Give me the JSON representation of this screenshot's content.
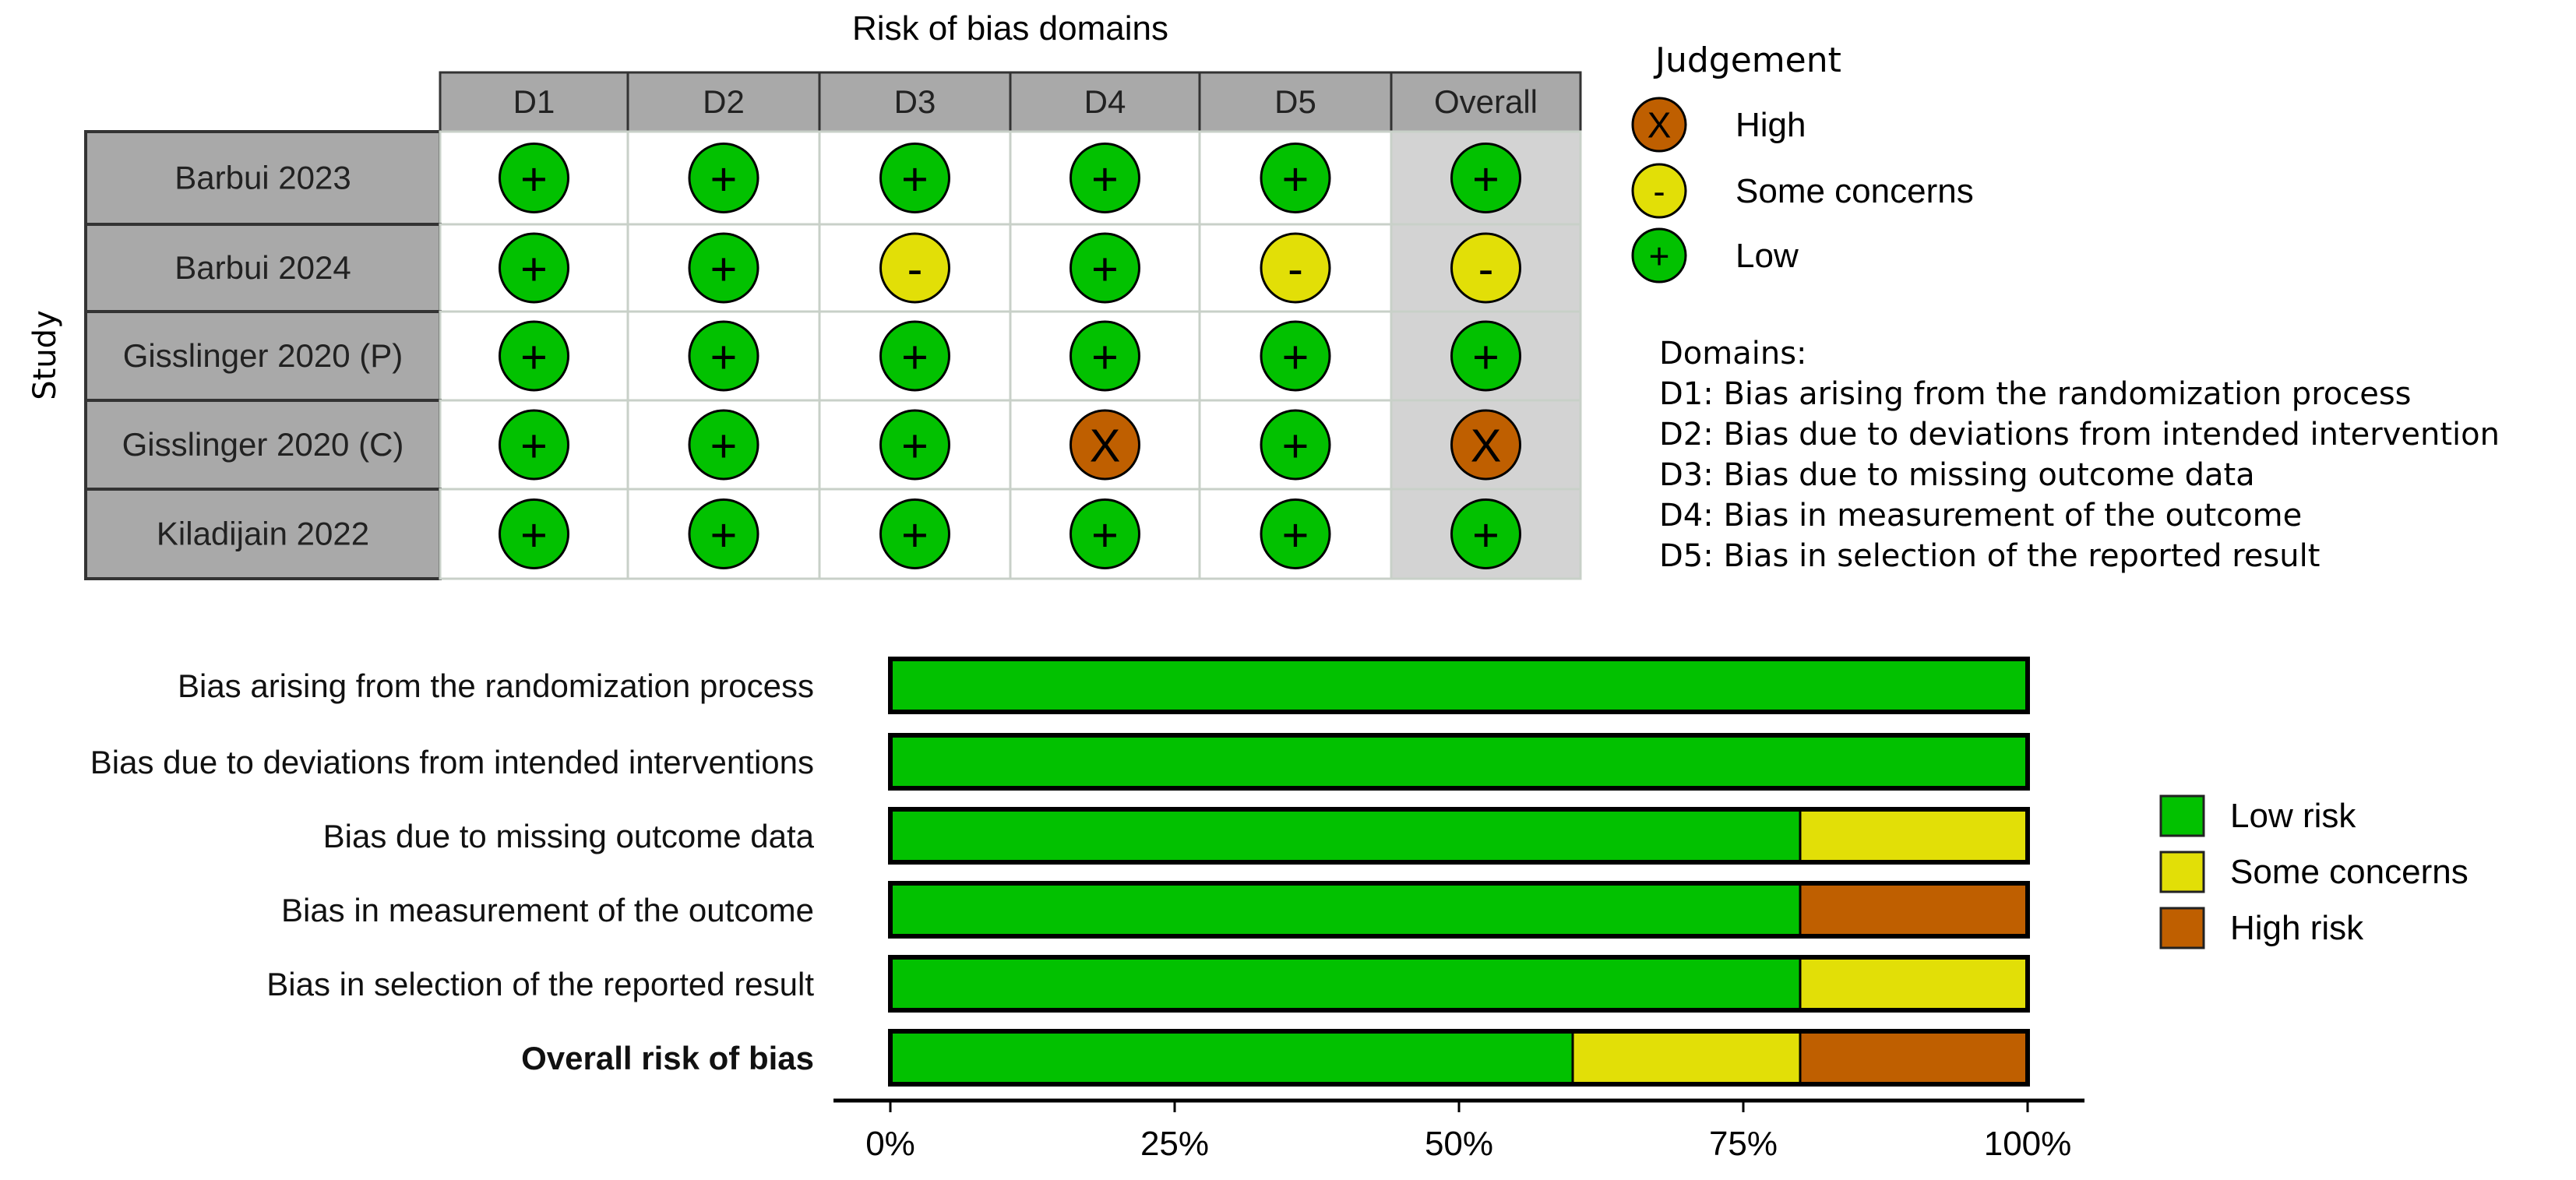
{
  "colors": {
    "low": "#02C100",
    "some": "#E2DF07",
    "high": "#BF5F00",
    "header_bg": "#A9A9A9",
    "overall_bg": "#D3D3D3"
  },
  "traffic_light": {
    "title": "Risk of bias domains",
    "y_label": "Study",
    "columns": [
      "D1",
      "D2",
      "D3",
      "D4",
      "D5",
      "Overall"
    ],
    "studies": [
      {
        "name": "Barbui 2023",
        "judgements": [
          "low",
          "low",
          "low",
          "low",
          "low",
          "low"
        ]
      },
      {
        "name": "Barbui 2024",
        "judgements": [
          "low",
          "low",
          "some",
          "low",
          "some",
          "some"
        ]
      },
      {
        "name": "Gisslinger 2020 (P)",
        "judgements": [
          "low",
          "low",
          "low",
          "low",
          "low",
          "low"
        ]
      },
      {
        "name": "Gisslinger 2020 (C)",
        "judgements": [
          "low",
          "low",
          "low",
          "high",
          "low",
          "high"
        ]
      },
      {
        "name": "Kiladijain 2022",
        "judgements": [
          "low",
          "low",
          "low",
          "low",
          "low",
          "low"
        ]
      }
    ],
    "symbols": {
      "low": "+",
      "some": "-",
      "high": "X"
    },
    "legend": {
      "title": "Judgement",
      "items": [
        {
          "key": "high",
          "symbol": "X",
          "label": "High"
        },
        {
          "key": "some",
          "symbol": "-",
          "label": "Some concerns"
        },
        {
          "key": "low",
          "symbol": "+",
          "label": "Low"
        }
      ]
    },
    "domains_title": "Domains:",
    "domains": [
      "D1: Bias arising from the randomization process",
      "D2: Bias due to deviations from intended intervention",
      "D3: Bias due to missing outcome data",
      "D4: Bias in measurement of the outcome",
      "D5: Bias in selection of the reported result"
    ]
  },
  "chart_data": {
    "type": "bar",
    "orientation": "horizontal-stacked",
    "categories": [
      "Bias arising from the randomization process",
      "Bias due to deviations from intended interventions",
      "Bias due to missing outcome data",
      "Bias in measurement of the outcome",
      "Bias in selection of the reported result",
      "Overall risk of bias"
    ],
    "bold_category": "Overall risk of bias",
    "series": [
      {
        "name": "Low risk",
        "key": "low",
        "values": [
          100,
          100,
          80,
          80,
          80,
          60
        ]
      },
      {
        "name": "Some concerns",
        "key": "some",
        "values": [
          0,
          0,
          20,
          0,
          20,
          20
        ]
      },
      {
        "name": "High risk",
        "key": "high",
        "values": [
          0,
          0,
          0,
          20,
          0,
          20
        ]
      }
    ],
    "xlim": [
      0,
      100
    ],
    "xticks": [
      "0%",
      "25%",
      "50%",
      "75%",
      "100%"
    ],
    "xlabel": "",
    "ylabel": "",
    "legend_position": "right",
    "grid": false
  }
}
